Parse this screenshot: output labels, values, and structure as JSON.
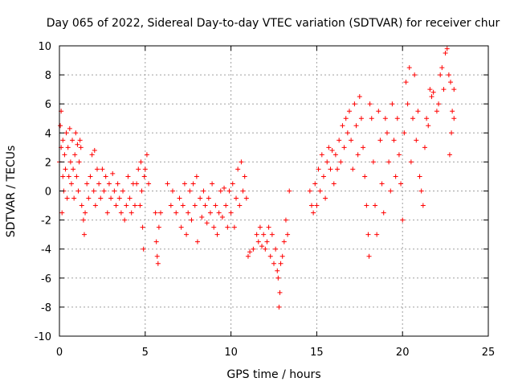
{
  "chart_data": {
    "type": "scatter",
    "title": "Day 065 of 2022, Sidereal Day-to-day VTEC variation (SDTVAR) for receiver chur",
    "xlabel": "GPS time / hours",
    "ylabel": "SDTVAR / TECUs",
    "xlim": [
      0,
      25
    ],
    "ylim": [
      -10,
      10
    ],
    "x_ticks": [
      0,
      5,
      10,
      15,
      20,
      25
    ],
    "y_ticks": [
      -10,
      -8,
      -6,
      -4,
      -2,
      0,
      2,
      4,
      6,
      8,
      10
    ],
    "grid": true,
    "marker": "+",
    "color": "#ff0000",
    "series": [
      {
        "name": "SDTVAR",
        "points": [
          [
            0.0,
            2.0
          ],
          [
            0.05,
            4.5
          ],
          [
            0.1,
            3.0
          ],
          [
            0.1,
            5.5
          ],
          [
            0.15,
            -1.5
          ],
          [
            0.2,
            1.0
          ],
          [
            0.2,
            3.5
          ],
          [
            0.25,
            0.0
          ],
          [
            0.3,
            2.5
          ],
          [
            0.35,
            1.5
          ],
          [
            0.4,
            4.0
          ],
          [
            0.45,
            -0.5
          ],
          [
            0.5,
            3.0
          ],
          [
            0.55,
            1.0
          ],
          [
            0.6,
            4.3
          ],
          [
            0.65,
            2.0
          ],
          [
            0.7,
            0.5
          ],
          [
            0.75,
            3.5
          ],
          [
            0.8,
            1.5
          ],
          [
            0.85,
            -0.5
          ],
          [
            0.9,
            2.5
          ],
          [
            0.95,
            4.0
          ],
          [
            1.0,
            1.0
          ],
          [
            1.05,
            3.2
          ],
          [
            1.1,
            0.0
          ],
          [
            1.15,
            2.0
          ],
          [
            1.2,
            3.5
          ],
          [
            1.25,
            3.0
          ],
          [
            1.3,
            -1.0
          ],
          [
            1.4,
            -2.0
          ],
          [
            1.45,
            -3.0
          ],
          [
            1.5,
            -1.5
          ],
          [
            1.6,
            0.5
          ],
          [
            1.7,
            -0.5
          ],
          [
            1.8,
            1.0
          ],
          [
            1.9,
            2.5
          ],
          [
            2.0,
            0.0
          ],
          [
            2.05,
            2.8
          ],
          [
            2.1,
            -1.0
          ],
          [
            2.2,
            1.5
          ],
          [
            2.3,
            0.5
          ],
          [
            2.4,
            -0.5
          ],
          [
            2.5,
            1.5
          ],
          [
            2.6,
            0.0
          ],
          [
            2.7,
            1.0
          ],
          [
            2.8,
            -1.5
          ],
          [
            2.9,
            0.5
          ],
          [
            3.0,
            -0.5
          ],
          [
            3.1,
            1.2
          ],
          [
            3.2,
            0.0
          ],
          [
            3.3,
            -1.0
          ],
          [
            3.4,
            0.5
          ],
          [
            3.5,
            -0.5
          ],
          [
            3.6,
            -1.5
          ],
          [
            3.7,
            0.0
          ],
          [
            3.8,
            -2.0
          ],
          [
            3.9,
            -1.0
          ],
          [
            4.0,
            1.0
          ],
          [
            4.1,
            -0.5
          ],
          [
            4.2,
            -1.5
          ],
          [
            4.3,
            0.5
          ],
          [
            4.4,
            -1.0
          ],
          [
            4.5,
            0.5
          ],
          [
            4.6,
            1.5
          ],
          [
            4.7,
            -1.0
          ],
          [
            4.75,
            2.0
          ],
          [
            4.8,
            0.0
          ],
          [
            4.85,
            -2.5
          ],
          [
            4.9,
            -4.0
          ],
          [
            4.95,
            1.0
          ],
          [
            5.0,
            1.5
          ],
          [
            5.1,
            2.5
          ],
          [
            5.2,
            0.5
          ],
          [
            5.6,
            -1.5
          ],
          [
            5.65,
            -3.5
          ],
          [
            5.7,
            -4.5
          ],
          [
            5.75,
            -5.0
          ],
          [
            5.8,
            -2.5
          ],
          [
            5.9,
            -1.5
          ],
          [
            6.3,
            0.5
          ],
          [
            6.5,
            -1.0
          ],
          [
            6.6,
            0.0
          ],
          [
            6.8,
            -1.5
          ],
          [
            7.0,
            -0.5
          ],
          [
            7.1,
            -2.5
          ],
          [
            7.2,
            -1.0
          ],
          [
            7.3,
            0.5
          ],
          [
            7.4,
            -3.0
          ],
          [
            7.5,
            -1.5
          ],
          [
            7.6,
            0.0
          ],
          [
            7.7,
            -2.0
          ],
          [
            7.8,
            0.5
          ],
          [
            7.9,
            -1.0
          ],
          [
            8.0,
            1.0
          ],
          [
            8.05,
            -3.5
          ],
          [
            8.2,
            -0.5
          ],
          [
            8.3,
            -1.8
          ],
          [
            8.4,
            0.0
          ],
          [
            8.5,
            -1.0
          ],
          [
            8.6,
            -2.2
          ],
          [
            8.7,
            -0.5
          ],
          [
            8.8,
            -1.5
          ],
          [
            8.9,
            0.5
          ],
          [
            9.0,
            -2.5
          ],
          [
            9.1,
            -1.0
          ],
          [
            9.2,
            -3.0
          ],
          [
            9.3,
            -1.5
          ],
          [
            9.4,
            0.0
          ],
          [
            9.5,
            -1.8
          ],
          [
            9.6,
            0.2
          ],
          [
            9.7,
            -1.0
          ],
          [
            9.8,
            -2.5
          ],
          [
            9.9,
            0.0
          ],
          [
            10.0,
            -1.5
          ],
          [
            10.1,
            0.5
          ],
          [
            10.2,
            -2.5
          ],
          [
            10.3,
            -0.5
          ],
          [
            10.4,
            1.5
          ],
          [
            10.5,
            -1.0
          ],
          [
            10.6,
            2.0
          ],
          [
            10.7,
            0.0
          ],
          [
            10.8,
            1.0
          ],
          [
            10.9,
            -0.5
          ],
          [
            11.0,
            -4.5
          ],
          [
            11.1,
            -4.2
          ],
          [
            11.3,
            -4.0
          ],
          [
            11.5,
            -3.0
          ],
          [
            11.6,
            -3.5
          ],
          [
            11.7,
            -2.5
          ],
          [
            11.8,
            -3.8
          ],
          [
            11.9,
            -3.0
          ],
          [
            12.0,
            -4.0
          ],
          [
            12.1,
            -3.5
          ],
          [
            12.2,
            -2.5
          ],
          [
            12.3,
            -4.5
          ],
          [
            12.4,
            -3.0
          ],
          [
            12.5,
            -5.0
          ],
          [
            12.6,
            -4.0
          ],
          [
            12.7,
            -5.5
          ],
          [
            12.75,
            -6.0
          ],
          [
            12.8,
            -8.0
          ],
          [
            12.85,
            -7.0
          ],
          [
            12.9,
            -5.0
          ],
          [
            13.0,
            -4.5
          ],
          [
            13.1,
            -3.5
          ],
          [
            13.2,
            -2.0
          ],
          [
            13.3,
            -3.0
          ],
          [
            13.4,
            0.0
          ],
          [
            14.6,
            0.0
          ],
          [
            14.7,
            -1.0
          ],
          [
            14.8,
            -1.5
          ],
          [
            14.9,
            0.5
          ],
          [
            15.0,
            -1.0
          ],
          [
            15.1,
            1.5
          ],
          [
            15.2,
            0.0
          ],
          [
            15.3,
            2.5
          ],
          [
            15.4,
            1.0
          ],
          [
            15.5,
            -0.5
          ],
          [
            15.6,
            2.0
          ],
          [
            15.7,
            3.0
          ],
          [
            15.8,
            1.5
          ],
          [
            15.9,
            2.8
          ],
          [
            16.0,
            0.5
          ],
          [
            16.1,
            2.5
          ],
          [
            16.2,
            1.5
          ],
          [
            16.3,
            3.5
          ],
          [
            16.4,
            2.0
          ],
          [
            16.5,
            4.5
          ],
          [
            16.6,
            3.0
          ],
          [
            16.7,
            5.0
          ],
          [
            16.8,
            4.0
          ],
          [
            16.9,
            5.5
          ],
          [
            17.0,
            3.5
          ],
          [
            17.1,
            1.5
          ],
          [
            17.2,
            6.0
          ],
          [
            17.3,
            4.5
          ],
          [
            17.4,
            2.5
          ],
          [
            17.5,
            6.5
          ],
          [
            17.6,
            5.0
          ],
          [
            17.7,
            3.0
          ],
          [
            17.8,
            1.0
          ],
          [
            17.9,
            -1.0
          ],
          [
            18.0,
            -3.0
          ],
          [
            18.05,
            -4.5
          ],
          [
            18.1,
            6.0
          ],
          [
            18.2,
            5.0
          ],
          [
            18.3,
            2.0
          ],
          [
            18.4,
            -1.0
          ],
          [
            18.5,
            -3.0
          ],
          [
            18.6,
            5.5
          ],
          [
            18.7,
            3.5
          ],
          [
            18.8,
            0.5
          ],
          [
            18.9,
            -1.5
          ],
          [
            19.0,
            5.0
          ],
          [
            19.1,
            4.0
          ],
          [
            19.2,
            2.0
          ],
          [
            19.3,
            0.0
          ],
          [
            19.4,
            6.0
          ],
          [
            19.5,
            3.5
          ],
          [
            19.6,
            1.0
          ],
          [
            19.7,
            5.0
          ],
          [
            19.8,
            2.5
          ],
          [
            19.9,
            0.5
          ],
          [
            20.0,
            -2.0
          ],
          [
            20.1,
            4.0
          ],
          [
            20.2,
            7.5
          ],
          [
            20.3,
            6.0
          ],
          [
            20.4,
            8.5
          ],
          [
            20.5,
            2.0
          ],
          [
            20.6,
            5.0
          ],
          [
            20.7,
            8.0
          ],
          [
            20.8,
            3.5
          ],
          [
            20.9,
            5.5
          ],
          [
            21.0,
            1.0
          ],
          [
            21.1,
            0.0
          ],
          [
            21.2,
            -1.0
          ],
          [
            21.3,
            3.0
          ],
          [
            21.4,
            5.0
          ],
          [
            21.5,
            4.5
          ],
          [
            21.6,
            7.0
          ],
          [
            21.7,
            6.5
          ],
          [
            21.8,
            6.8
          ],
          [
            22.0,
            5.5
          ],
          [
            22.1,
            6.0
          ],
          [
            22.2,
            8.0
          ],
          [
            22.3,
            8.5
          ],
          [
            22.4,
            7.0
          ],
          [
            22.5,
            9.5
          ],
          [
            22.6,
            9.8
          ],
          [
            22.7,
            8.0
          ],
          [
            22.75,
            2.5
          ],
          [
            22.8,
            7.5
          ],
          [
            22.85,
            4.0
          ],
          [
            22.9,
            5.5
          ],
          [
            23.0,
            7.0
          ],
          [
            23.0,
            5.0
          ]
        ]
      }
    ]
  }
}
